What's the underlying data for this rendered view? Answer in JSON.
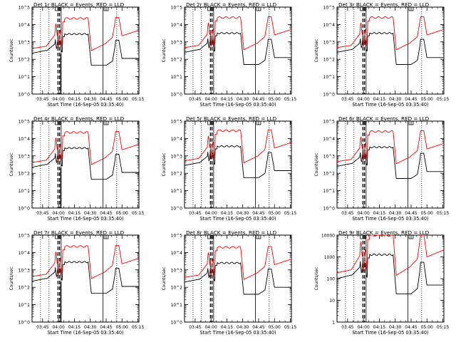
{
  "colors": {
    "background": "#ffffff",
    "axes": "#000000",
    "events": "#000000",
    "lld": "#ff0000"
  },
  "chart_data": [
    {
      "type": "line",
      "title": "Det 1r BLACK = Events, RED = LLD",
      "xlabel": "Start Time (16-Sep-05 03:35:40)",
      "ylabel": "Counts/sec",
      "y_scale": "log",
      "x_ticks": [
        "03:45",
        "04:00",
        "04:15",
        "04:30",
        "04:45",
        "05:00",
        "05:15"
      ],
      "y_ticks": [
        "10^0",
        "10^1",
        "10^2",
        "10^3",
        "10^4",
        "10^5"
      ],
      "series": [
        {
          "name": "Events",
          "color": "#000000"
        },
        {
          "name": "LLD",
          "color": "#ff0000"
        }
      ]
    },
    {
      "type": "line",
      "title": "Det 2r BLACK = Events, RED = LLD",
      "xlabel": "Start Time (16-Sep-05 03:35:40)",
      "ylabel": "Counts/sec",
      "y_scale": "log",
      "x_ticks": [
        "03:45",
        "04:00",
        "04:15",
        "04:30",
        "04:45",
        "05:00",
        "05:15"
      ],
      "y_ticks": [
        "10^0",
        "10^1",
        "10^2",
        "10^3",
        "10^4",
        "10^5"
      ],
      "series": [
        {
          "name": "Events",
          "color": "#000000"
        },
        {
          "name": "LLD",
          "color": "#ff0000"
        }
      ]
    },
    {
      "type": "line",
      "title": "Det 3r BLACK = Events, RED = LLD",
      "xlabel": "Start Time (16-Sep-05 03:35:40)",
      "ylabel": "Counts/sec",
      "y_scale": "log",
      "x_ticks": [
        "03:45",
        "04:00",
        "04:15",
        "04:30",
        "04:45",
        "05:00",
        "05:15"
      ],
      "y_ticks": [
        "10^0",
        "10^1",
        "10^2",
        "10^3",
        "10^4",
        "10^5"
      ],
      "series": [
        {
          "name": "Events",
          "color": "#000000"
        },
        {
          "name": "LLD",
          "color": "#ff0000"
        }
      ]
    },
    {
      "type": "line",
      "title": "Det 4r BLACK = Events, RED = LLD",
      "xlabel": "Start Time (16-Sep-05 03:35:40)",
      "ylabel": "Counts/sec",
      "y_scale": "log",
      "x_ticks": [
        "03:45",
        "04:00",
        "04:15",
        "04:30",
        "04:45",
        "05:00",
        "05:15"
      ],
      "y_ticks": [
        "10^0",
        "10^1",
        "10^2",
        "10^3",
        "10^4",
        "10^5"
      ],
      "series": [
        {
          "name": "Events",
          "color": "#000000"
        },
        {
          "name": "LLD",
          "color": "#ff0000"
        }
      ]
    },
    {
      "type": "line",
      "title": "Det 5r BLACK = Events, RED = LLD",
      "xlabel": "Start Time (16-Sep-05 03:35:40)",
      "ylabel": "Counts/sec",
      "y_scale": "log",
      "x_ticks": [
        "03:45",
        "04:00",
        "04:15",
        "04:30",
        "04:45",
        "05:00",
        "05:15"
      ],
      "y_ticks": [
        "10^0",
        "10^1",
        "10^2",
        "10^3",
        "10^4",
        "10^5"
      ],
      "series": [
        {
          "name": "Events",
          "color": "#000000"
        },
        {
          "name": "LLD",
          "color": "#ff0000"
        }
      ]
    },
    {
      "type": "line",
      "title": "Det 6r BLACK = Events, RED = LLD",
      "xlabel": "Start Time (16-Sep-05 03:35:40)",
      "ylabel": "Counts/sec",
      "y_scale": "log",
      "x_ticks": [
        "03:45",
        "04:00",
        "04:15",
        "04:30",
        "04:45",
        "05:00",
        "05:15"
      ],
      "y_ticks": [
        "10^0",
        "10^1",
        "10^2",
        "10^3",
        "10^4",
        "10^5"
      ],
      "series": [
        {
          "name": "Events",
          "color": "#000000"
        },
        {
          "name": "LLD",
          "color": "#ff0000"
        }
      ]
    },
    {
      "type": "line",
      "title": "Det 7r BLACK = Events, RED = LLD",
      "xlabel": "Start Time (16-Sep-05 03:35:40)",
      "ylabel": "Counts/sec",
      "y_scale": "log",
      "x_ticks": [
        "03:45",
        "04:00",
        "04:15",
        "04:30",
        "04:45",
        "05:00",
        "05:15"
      ],
      "y_ticks": [
        "10^0",
        "10^1",
        "10^2",
        "10^3",
        "10^4",
        "10^5"
      ],
      "series": [
        {
          "name": "Events",
          "color": "#000000"
        },
        {
          "name": "LLD",
          "color": "#ff0000"
        }
      ]
    },
    {
      "type": "line",
      "title": "Det 8r BLACK = Events, RED = LLD",
      "xlabel": "Start Time (16-Sep-05 03:35:40)",
      "ylabel": "Counts/sec",
      "y_scale": "log",
      "x_ticks": [
        "03:45",
        "04:00",
        "04:15",
        "04:30",
        "04:45",
        "05:00",
        "05:15"
      ],
      "y_ticks": [
        "10^0",
        "10^1",
        "10^2",
        "10^3",
        "10^4",
        "10^5"
      ],
      "series": [
        {
          "name": "Events",
          "color": "#000000"
        },
        {
          "name": "LLD",
          "color": "#ff0000"
        }
      ]
    },
    {
      "type": "line",
      "title": "Det 9r BLACK = Events, RED = LLD",
      "xlabel": "Start Time (16-Sep-05 03:35:40)",
      "ylabel": "Counts/sec",
      "y_scale": "log",
      "x_ticks": [
        "03:45",
        "04:00",
        "04:15",
        "04:30",
        "04:45",
        "05:00",
        "05:15"
      ],
      "y_ticks": [
        "1",
        "10",
        "100",
        "1000",
        "10000"
      ],
      "series": [
        {
          "name": "Events",
          "color": "#000000"
        },
        {
          "name": "LLD",
          "color": "#ff0000"
        }
      ]
    }
  ]
}
